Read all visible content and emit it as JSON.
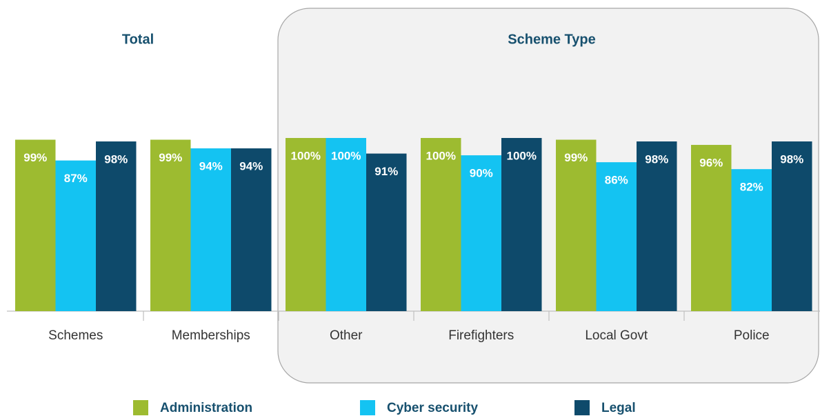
{
  "chart_data": {
    "type": "bar",
    "group_titles": [
      "Total",
      "Scheme Type"
    ],
    "categories": [
      "Schemes",
      "Memberships",
      "Other",
      "Firefighters",
      "Local Govt",
      "Police"
    ],
    "series": [
      {
        "name": "Administration",
        "color": "#9dbb30",
        "values": [
          99,
          99,
          100,
          100,
          99,
          96
        ],
        "value_labels": [
          "99%",
          "99%",
          "100%",
          "100%",
          "99%",
          "96%"
        ]
      },
      {
        "name": "Cyber security",
        "color": "#14c3f2",
        "values": [
          87,
          94,
          100,
          90,
          86,
          82
        ],
        "value_labels": [
          "87%",
          "94%",
          "100%",
          "90%",
          "86%",
          "82%"
        ]
      },
      {
        "name": "Legal",
        "color": "#0e4a6b",
        "values": [
          98,
          94,
          91,
          100,
          98,
          98
        ],
        "value_labels": [
          "98%",
          "94%",
          "91%",
          "100%",
          "98%",
          "98%"
        ]
      }
    ],
    "ylim": [
      0,
      100
    ],
    "legend": "bottom"
  }
}
